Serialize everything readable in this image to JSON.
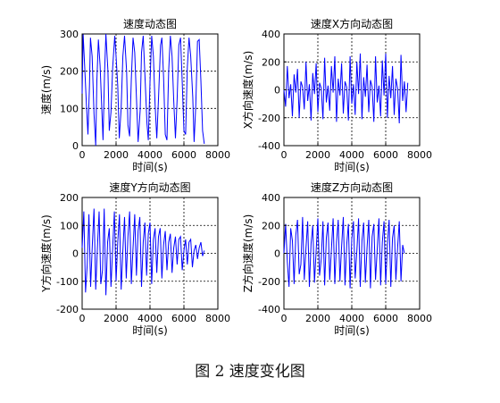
{
  "figure_caption": "图 2  速度变化图",
  "chart_data": [
    {
      "type": "line",
      "title": "速度动态图",
      "xlabel": "时间(s)",
      "ylabel": "速度(m/s)",
      "xlim": [
        0,
        8000
      ],
      "ylim": [
        0,
        300
      ],
      "xticks": [
        0,
        2000,
        4000,
        6000,
        8000
      ],
      "yticks": [
        0,
        100,
        200,
        300
      ],
      "grid": true,
      "series": [
        {
          "color": "#0000ff",
          "x": [
            0,
            60,
            160,
            250,
            340,
            430,
            490,
            590,
            700,
            800,
            870,
            960,
            1060,
            1160,
            1230,
            1320,
            1400,
            1520,
            1600,
            1700,
            1800,
            1920,
            2000,
            2100,
            2190,
            2300,
            2400,
            2500,
            2620,
            2700,
            2800,
            2900,
            3000,
            3100,
            3200,
            3300,
            3420,
            3500,
            3600,
            3700,
            3820,
            3900,
            4000,
            4100,
            4200,
            4300,
            4400,
            4500,
            4620,
            4700,
            4800,
            4900,
            5000,
            5100,
            5200,
            5300,
            5400,
            5500,
            5600,
            5700,
            5800,
            5900,
            6000,
            6100,
            6200,
            6300,
            6400,
            6520,
            6600,
            6700,
            6800,
            6900,
            7000,
            7100,
            7200
          ],
          "values": [
            140,
            300,
            205,
            110,
            30,
            160,
            290,
            240,
            85,
            0,
            175,
            285,
            215,
            100,
            15,
            195,
            300,
            200,
            40,
            90,
            210,
            295,
            240,
            160,
            20,
            100,
            240,
            295,
            200,
            55,
            25,
            180,
            290,
            250,
            130,
            10,
            95,
            250,
            295,
            190,
            60,
            15,
            170,
            295,
            240,
            110,
            20,
            125,
            270,
            290,
            185,
            30,
            15,
            200,
            295,
            240,
            120,
            20,
            125,
            270,
            290,
            170,
            40,
            30,
            210,
            290,
            240,
            130,
            10,
            110,
            280,
            285,
            175,
            40,
            5
          ]
        }
      ]
    },
    {
      "type": "line",
      "title": "速度X方向动态图",
      "xlabel": "时间(s)",
      "ylabel": "X方向速度(m/s)",
      "xlim": [
        0,
        8000
      ],
      "ylim": [
        -400,
        400
      ],
      "xticks": [
        0,
        2000,
        4000,
        6000,
        8000
      ],
      "yticks": [
        -400,
        -200,
        0,
        200,
        400
      ],
      "grid": true,
      "series": [
        {
          "color": "#0000ff",
          "x": [
            0,
            100,
            200,
            300,
            400,
            500,
            600,
            700,
            800,
            900,
            1000,
            1100,
            1200,
            1300,
            1400,
            1500,
            1600,
            1700,
            1800,
            1900,
            2000,
            2100,
            2200,
            2300,
            2400,
            2500,
            2600,
            2700,
            2800,
            2900,
            3000,
            3100,
            3200,
            3300,
            3400,
            3500,
            3600,
            3700,
            3800,
            3900,
            4000,
            4100,
            4200,
            4300,
            4400,
            4500,
            4600,
            4700,
            4800,
            4900,
            5000,
            5100,
            5200,
            5300,
            5400,
            5500,
            5600,
            5700,
            5800,
            5900,
            6000,
            6100,
            6200,
            6300,
            6400,
            6500,
            6600,
            6700,
            6800,
            6900,
            7000,
            7100,
            7200,
            7300
          ],
          "values": [
            0,
            -120,
            170,
            -60,
            40,
            -190,
            110,
            -20,
            150,
            -200,
            60,
            20,
            -140,
            200,
            -80,
            40,
            -220,
            120,
            -30,
            190,
            -160,
            50,
            10,
            -210,
            230,
            -90,
            30,
            -150,
            170,
            -20,
            240,
            -230,
            80,
            -40,
            190,
            -170,
            60,
            20,
            -220,
            240,
            -100,
            40,
            -180,
            200,
            -30,
            260,
            -210,
            90,
            -50,
            180,
            -160,
            70,
            20,
            -230,
            240,
            -90,
            30,
            -190,
            210,
            -40,
            260,
            -200,
            100,
            -60,
            170,
            -180,
            80,
            10,
            -240,
            250,
            -80,
            60,
            -160,
            50
          ]
        }
      ]
    },
    {
      "type": "line",
      "title": "速度Y方向动态图",
      "xlabel": "时间(s)",
      "ylabel": "Y方向速度(m/s)",
      "xlim": [
        0,
        8000
      ],
      "ylim": [
        -200,
        200
      ],
      "xticks": [
        0,
        2000,
        4000,
        6000,
        8000
      ],
      "yticks": [
        -200,
        -100,
        0,
        100,
        200
      ],
      "grid": true,
      "series": [
        {
          "color": "#0000ff",
          "x": [
            0,
            100,
            200,
            300,
            400,
            500,
            600,
            700,
            800,
            900,
            1000,
            1100,
            1200,
            1300,
            1400,
            1500,
            1600,
            1700,
            1800,
            1900,
            2000,
            2100,
            2200,
            2300,
            2400,
            2500,
            2600,
            2700,
            2800,
            2900,
            3000,
            3100,
            3200,
            3300,
            3400,
            3500,
            3600,
            3700,
            3800,
            3900,
            4000,
            4100,
            4200,
            4300,
            4400,
            4500,
            4600,
            4700,
            4800,
            4900,
            5000,
            5100,
            5200,
            5300,
            5400,
            5500,
            5600,
            5700,
            5800,
            5900,
            6000,
            6100,
            6200,
            6300,
            6400,
            6500,
            6600,
            6700,
            6800,
            6900,
            7000,
            7100,
            7200
          ],
          "values": [
            20,
            150,
            -140,
            -40,
            140,
            -120,
            30,
            160,
            -130,
            20,
            150,
            -110,
            -60,
            160,
            -150,
            40,
            90,
            -120,
            20,
            150,
            -100,
            40,
            140,
            -130,
            10,
            130,
            -90,
            60,
            150,
            -110,
            20,
            140,
            -80,
            80,
            130,
            -120,
            40,
            110,
            -80,
            70,
            110,
            -110,
            50,
            90,
            -70,
            60,
            90,
            -90,
            30,
            80,
            -60,
            40,
            70,
            -70,
            20,
            60,
            -40,
            50,
            60,
            -60,
            10,
            50,
            -40,
            40,
            50,
            -50,
            10,
            30,
            -20,
            20,
            40,
            -10,
            10
          ]
        }
      ]
    },
    {
      "type": "line",
      "title": "速度Z方向动态图",
      "xlabel": "时间(s)",
      "ylabel": "Z方向速度(m/s)",
      "xlim": [
        0,
        8000
      ],
      "ylim": [
        -400,
        400
      ],
      "xticks": [
        0,
        2000,
        4000,
        6000,
        8000
      ],
      "yticks": [
        -400,
        -200,
        0,
        200,
        400
      ],
      "grid": true,
      "series": [
        {
          "color": "#0000ff",
          "x": [
            0,
            100,
            200,
            300,
            400,
            500,
            600,
            700,
            800,
            900,
            1000,
            1100,
            1200,
            1300,
            1400,
            1500,
            1600,
            1700,
            1800,
            1900,
            2000,
            2100,
            2200,
            2300,
            2400,
            2500,
            2600,
            2700,
            2800,
            2900,
            3000,
            3100,
            3200,
            3300,
            3400,
            3500,
            3600,
            3700,
            3800,
            3900,
            4000,
            4100,
            4200,
            4300,
            4400,
            4500,
            4600,
            4700,
            4800,
            4900,
            5000,
            5100,
            5200,
            5300,
            5400,
            5500,
            5600,
            5700,
            5800,
            5900,
            6000,
            6100,
            6200,
            6300,
            6400,
            6500,
            6600,
            6700,
            6800,
            6900,
            7000,
            7100
          ],
          "values": [
            0,
            210,
            -60,
            -240,
            180,
            90,
            -220,
            130,
            240,
            -150,
            -80,
            260,
            -190,
            40,
            230,
            -240,
            70,
            200,
            -210,
            20,
            250,
            -160,
            -40,
            230,
            -230,
            110,
            220,
            -190,
            30,
            250,
            -220,
            80,
            240,
            -200,
            50,
            260,
            -230,
            60,
            210,
            -250,
            100,
            230,
            -180,
            20,
            250,
            -240,
            90,
            220,
            -210,
            40,
            240,
            -250,
            120,
            210,
            -190,
            30,
            250,
            -230,
            80,
            230,
            -220,
            60,
            240,
            -240,
            110,
            200,
            -190,
            40,
            230,
            -200,
            60,
            0
          ]
        }
      ]
    }
  ]
}
